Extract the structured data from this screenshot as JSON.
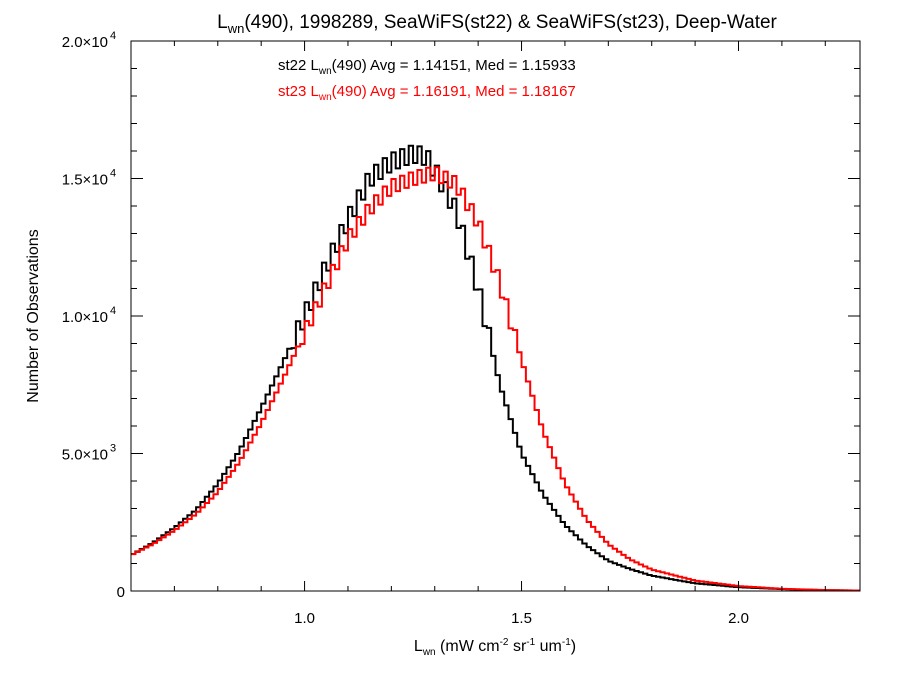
{
  "chart_data": {
    "type": "line",
    "title": {
      "prefix": "L",
      "sub": "wn",
      "rest": "(490), 1998289, SeaWiFS(st22) & SeaWiFS(st23), Deep-Water"
    },
    "xlabel": {
      "prefix": "L",
      "sub": "wn",
      "p1": " (mW cm",
      "e1": "-2",
      "p2": " sr",
      "e2": "-1",
      "p3": " um",
      "e3": "-1",
      "p4": ")"
    },
    "ylabel": "Number of Observations",
    "xlim": [
      0.6,
      2.28
    ],
    "ylim": [
      0,
      20000
    ],
    "xticks": [
      {
        "value": 1.0,
        "label": "1.0"
      },
      {
        "value": 1.5,
        "label": "1.5"
      },
      {
        "value": 2.0,
        "label": "2.0"
      }
    ],
    "yticks": [
      {
        "value": 0,
        "base": "0",
        "exp": ""
      },
      {
        "value": 5000,
        "base": "5.0×10",
        "exp": "3"
      },
      {
        "value": 10000,
        "base": "1.0×10",
        "exp": "4"
      },
      {
        "value": 15000,
        "base": "1.5×10",
        "exp": "4"
      },
      {
        "value": 20000,
        "base": "2.0×10",
        "exp": "4"
      }
    ],
    "legend": [
      {
        "pre": "st22 L",
        "sub": "wn",
        "post": "(490) Avg = 1.14151, Med = 1.15933",
        "color": "#000000"
      },
      {
        "pre": "st23 L",
        "sub": "wn",
        "post": "(490) Avg = 1.16191, Med = 1.18167",
        "color": "#ff0000"
      }
    ],
    "series": [
      {
        "color": "#000000",
        "x": [
          0.6,
          0.65,
          0.7,
          0.75,
          0.8,
          0.85,
          0.9,
          0.95,
          1.0,
          1.05,
          1.1,
          1.15,
          1.2,
          1.25,
          1.28,
          1.3,
          1.35,
          1.4,
          1.45,
          1.5,
          1.55,
          1.6,
          1.65,
          1.7,
          1.75,
          1.8,
          1.9,
          2.0,
          2.1,
          2.2,
          2.28
        ],
        "y": [
          1300,
          1750,
          2300,
          2950,
          3900,
          5100,
          6650,
          8300,
          10000,
          11800,
          13500,
          15000,
          15600,
          15900,
          15800,
          15300,
          13800,
          11000,
          7500,
          5000,
          3500,
          2400,
          1650,
          1100,
          800,
          560,
          280,
          140,
          70,
          30,
          15
        ]
      },
      {
        "color": "#ff0000",
        "x": [
          0.6,
          0.65,
          0.7,
          0.75,
          0.8,
          0.85,
          0.9,
          0.95,
          1.0,
          1.05,
          1.1,
          1.15,
          1.2,
          1.25,
          1.3,
          1.35,
          1.4,
          1.45,
          1.5,
          1.55,
          1.6,
          1.65,
          1.7,
          1.75,
          1.8,
          1.9,
          2.0,
          2.1,
          2.2,
          2.28
        ],
        "y": [
          1300,
          1700,
          2200,
          2800,
          3600,
          4700,
          6100,
          7700,
          9400,
          11100,
          12800,
          13900,
          14700,
          15000,
          15200,
          14800,
          13400,
          11200,
          8400,
          5800,
          3900,
          2600,
          1700,
          1150,
          780,
          380,
          180,
          80,
          35,
          15
        ]
      }
    ]
  }
}
